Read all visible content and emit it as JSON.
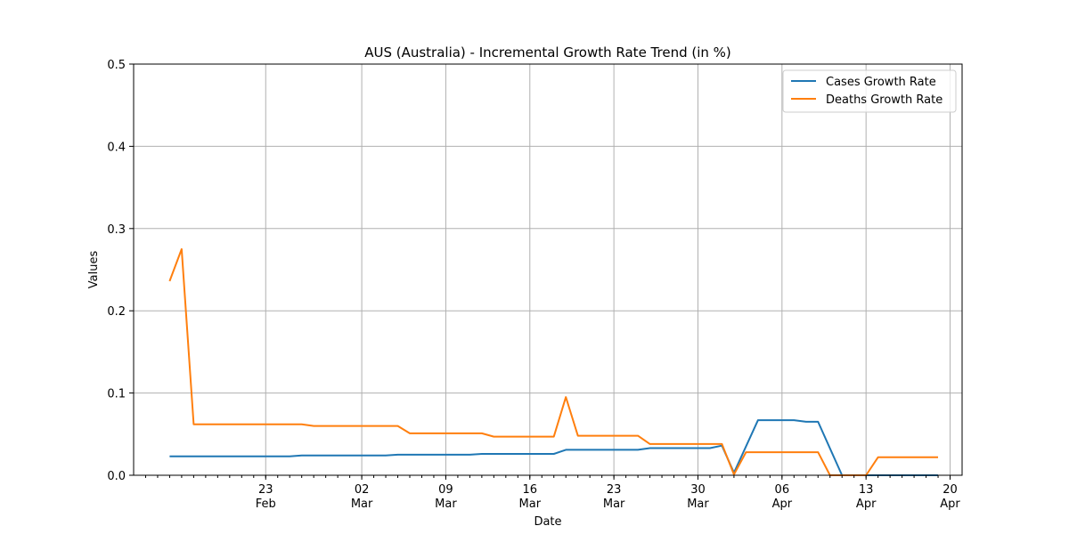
{
  "chart_data": {
    "type": "line",
    "title": "AUS (Australia) - Incremental Growth Rate Trend (in %)",
    "xlabel": "Date",
    "ylabel": "Values",
    "ylim": [
      0,
      0.5
    ],
    "xlim": [
      "2020-02-12",
      "2020-04-21"
    ],
    "yticks": [
      "0.0",
      "0.1",
      "0.2",
      "0.3",
      "0.4",
      "0.5"
    ],
    "xticks": [
      {
        "date": "2020-02-23",
        "day": "23",
        "month": "Feb"
      },
      {
        "date": "2020-03-02",
        "day": "02",
        "month": "Mar"
      },
      {
        "date": "2020-03-09",
        "day": "09",
        "month": "Mar"
      },
      {
        "date": "2020-03-16",
        "day": "16",
        "month": "Mar"
      },
      {
        "date": "2020-03-23",
        "day": "23",
        "month": "Mar"
      },
      {
        "date": "2020-03-30",
        "day": "30",
        "month": "Mar"
      },
      {
        "date": "2020-04-06",
        "day": "06",
        "month": "Apr"
      },
      {
        "date": "2020-04-13",
        "day": "13",
        "month": "Apr"
      },
      {
        "date": "2020-04-20",
        "day": "20",
        "month": "Apr"
      }
    ],
    "grid": true,
    "legend_position": "top-right",
    "series": [
      {
        "name": "Cases Growth Rate",
        "color": "#1f77b4",
        "points": [
          [
            "2020-02-15",
            0.023
          ],
          [
            "2020-02-22",
            0.023
          ],
          [
            "2020-02-25",
            0.023
          ],
          [
            "2020-02-26",
            0.024
          ],
          [
            "2020-03-04",
            0.024
          ],
          [
            "2020-03-05",
            0.025
          ],
          [
            "2020-03-11",
            0.025
          ],
          [
            "2020-03-12",
            0.026
          ],
          [
            "2020-03-18",
            0.026
          ],
          [
            "2020-03-19",
            0.031
          ],
          [
            "2020-03-25",
            0.031
          ],
          [
            "2020-03-26",
            0.033
          ],
          [
            "2020-03-31",
            0.033
          ],
          [
            "2020-04-01",
            0.036
          ],
          [
            "2020-04-02",
            0.003
          ],
          [
            "2020-04-04",
            0.067
          ],
          [
            "2020-04-07",
            0.067
          ],
          [
            "2020-04-08",
            0.065
          ],
          [
            "2020-04-09",
            0.065
          ],
          [
            "2020-04-11",
            0.0
          ],
          [
            "2020-04-19",
            0.0
          ]
        ]
      },
      {
        "name": "Deaths Growth Rate",
        "color": "#ff7f0e",
        "points": [
          [
            "2020-02-15",
            0.236
          ],
          [
            "2020-02-16",
            0.275
          ],
          [
            "2020-02-17",
            0.062
          ],
          [
            "2020-02-26",
            0.062
          ],
          [
            "2020-02-27",
            0.06
          ],
          [
            "2020-03-05",
            0.06
          ],
          [
            "2020-03-06",
            0.051
          ],
          [
            "2020-03-12",
            0.051
          ],
          [
            "2020-03-13",
            0.047
          ],
          [
            "2020-03-18",
            0.047
          ],
          [
            "2020-03-19",
            0.095
          ],
          [
            "2020-03-20",
            0.048
          ],
          [
            "2020-03-25",
            0.048
          ],
          [
            "2020-03-26",
            0.038
          ],
          [
            "2020-04-01",
            0.038
          ],
          [
            "2020-04-02",
            0.001
          ],
          [
            "2020-04-03",
            0.028
          ],
          [
            "2020-04-09",
            0.028
          ],
          [
            "2020-04-10",
            0.0
          ],
          [
            "2020-04-13",
            0.0
          ],
          [
            "2020-04-14",
            0.022
          ],
          [
            "2020-04-19",
            0.022
          ]
        ]
      }
    ]
  }
}
